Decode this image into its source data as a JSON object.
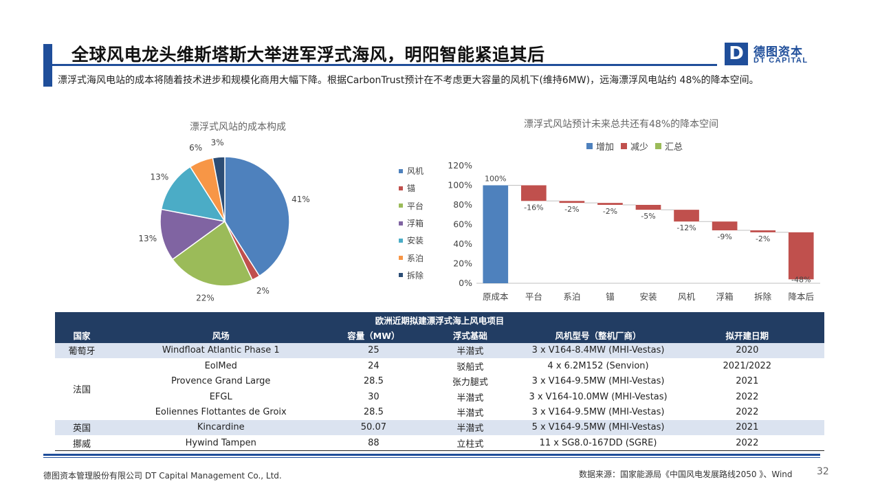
{
  "header": {
    "title": "全球风电龙头维斯塔斯大举进军浮式海风，明阳智能紧追其后",
    "logo_mark": "D",
    "logo_cn": "德图资本",
    "logo_en": "DT CAPITAL",
    "brand_color": "#1f4e9a"
  },
  "description": "漂浮式海风电站的成本将随着技术进步和规模化商用大幅下降。根据CarbonTrust预计在不考虑更大容量的风机下(维持6MW)，远海漂浮风电站约 48%的降本空间。",
  "chart_data": [
    {
      "type": "pie",
      "title": "漂浮式风站的成本构成",
      "legend_position": "right",
      "labels": [
        "风机",
        "锚",
        "平台",
        "浮箱",
        "安装",
        "系泊",
        "拆除"
      ],
      "values": [
        41,
        2,
        22,
        13,
        13,
        6,
        3
      ],
      "value_labels": [
        "41%",
        "2%",
        "22%",
        "13%",
        "13%",
        "6%",
        "3%"
      ],
      "colors": [
        "#4e81bd",
        "#c0504d",
        "#9bbb59",
        "#8064a2",
        "#4bacc6",
        "#f79646",
        "#2c4d75"
      ]
    },
    {
      "type": "bar",
      "subtype": "waterfall",
      "title": "漂浮式风站预计未来总共还有48%的降本空间",
      "legend_position": "top",
      "legend": [
        {
          "name": "增加",
          "color": "#4e81bd"
        },
        {
          "name": "减少",
          "color": "#c0504d"
        },
        {
          "name": "汇总",
          "color": "#9bbb59"
        }
      ],
      "categories": [
        "原成本",
        "平台",
        "系泊",
        "锚",
        "安装",
        "风机",
        "浮箱",
        "拆除",
        "降本后"
      ],
      "values": [
        100,
        -16,
        -2,
        -2,
        -5,
        -12,
        -9,
        -2,
        -48
      ],
      "value_labels": [
        "100%",
        "-16%",
        "-2%",
        "-2%",
        "-5%",
        "-12%",
        "-9%",
        "-2%",
        "-48%"
      ],
      "kinds": [
        "increase",
        "decrease",
        "decrease",
        "decrease",
        "decrease",
        "decrease",
        "decrease",
        "decrease",
        "decrease"
      ],
      "ylim": [
        0,
        120
      ],
      "yticks": [
        "0%",
        "20%",
        "40%",
        "60%",
        "80%",
        "100%",
        "120%"
      ],
      "grid": false
    }
  ],
  "table": {
    "title": "欧洲近期拟建漂浮式海上风电项目",
    "headers": [
      "国家",
      "风场",
      "容量（MW）",
      "浮式基础",
      "风机型号（整机厂商）",
      "拟开建日期"
    ],
    "rows": [
      [
        "葡萄牙",
        "Windfloat  Atlantic Phase 1",
        "25",
        "半潜式",
        "3 x V164-8.4MW  (MHI-Vestas)",
        "2020"
      ],
      [
        "法国",
        "EolMed",
        "24",
        "驳船式",
        "4 x 6.2M152  (Senvion)",
        "2021/2022"
      ],
      [
        "",
        "Provence  Grand  Large",
        "28.5",
        "张力腿式",
        "3 x V164-9.5MW  (MHI-Vestas)",
        "2021"
      ],
      [
        "",
        "EFGL",
        "30",
        "半潜式",
        "3 x V164-10.0MW  (MHI-Vestas)",
        "2022"
      ],
      [
        "",
        "Eoliennes  Flottantes  de  Groix",
        "28.5",
        "半潜式",
        "3 x V164-9.5MW  (MHI-Vestas)",
        "2022"
      ],
      [
        "英国",
        "Kincardine",
        "50.07",
        "半潜式",
        "5 x V164-9.5MW (MHI-Vestas)",
        "2021"
      ],
      [
        "挪威",
        "Hywind  Tampen",
        "88",
        "立柱式",
        "11 x SG8.0-167DD  (SGRE)",
        "2022"
      ]
    ],
    "band_color": "#dbe3f0",
    "header_color": "#223d63"
  },
  "footer": {
    "company": "德图资本管理股份有限公司  DT Capital Management  Co., Ltd.",
    "source": "数据来源：国家能源局《中国风电发展路线2050 》、Wind",
    "page": "32"
  }
}
